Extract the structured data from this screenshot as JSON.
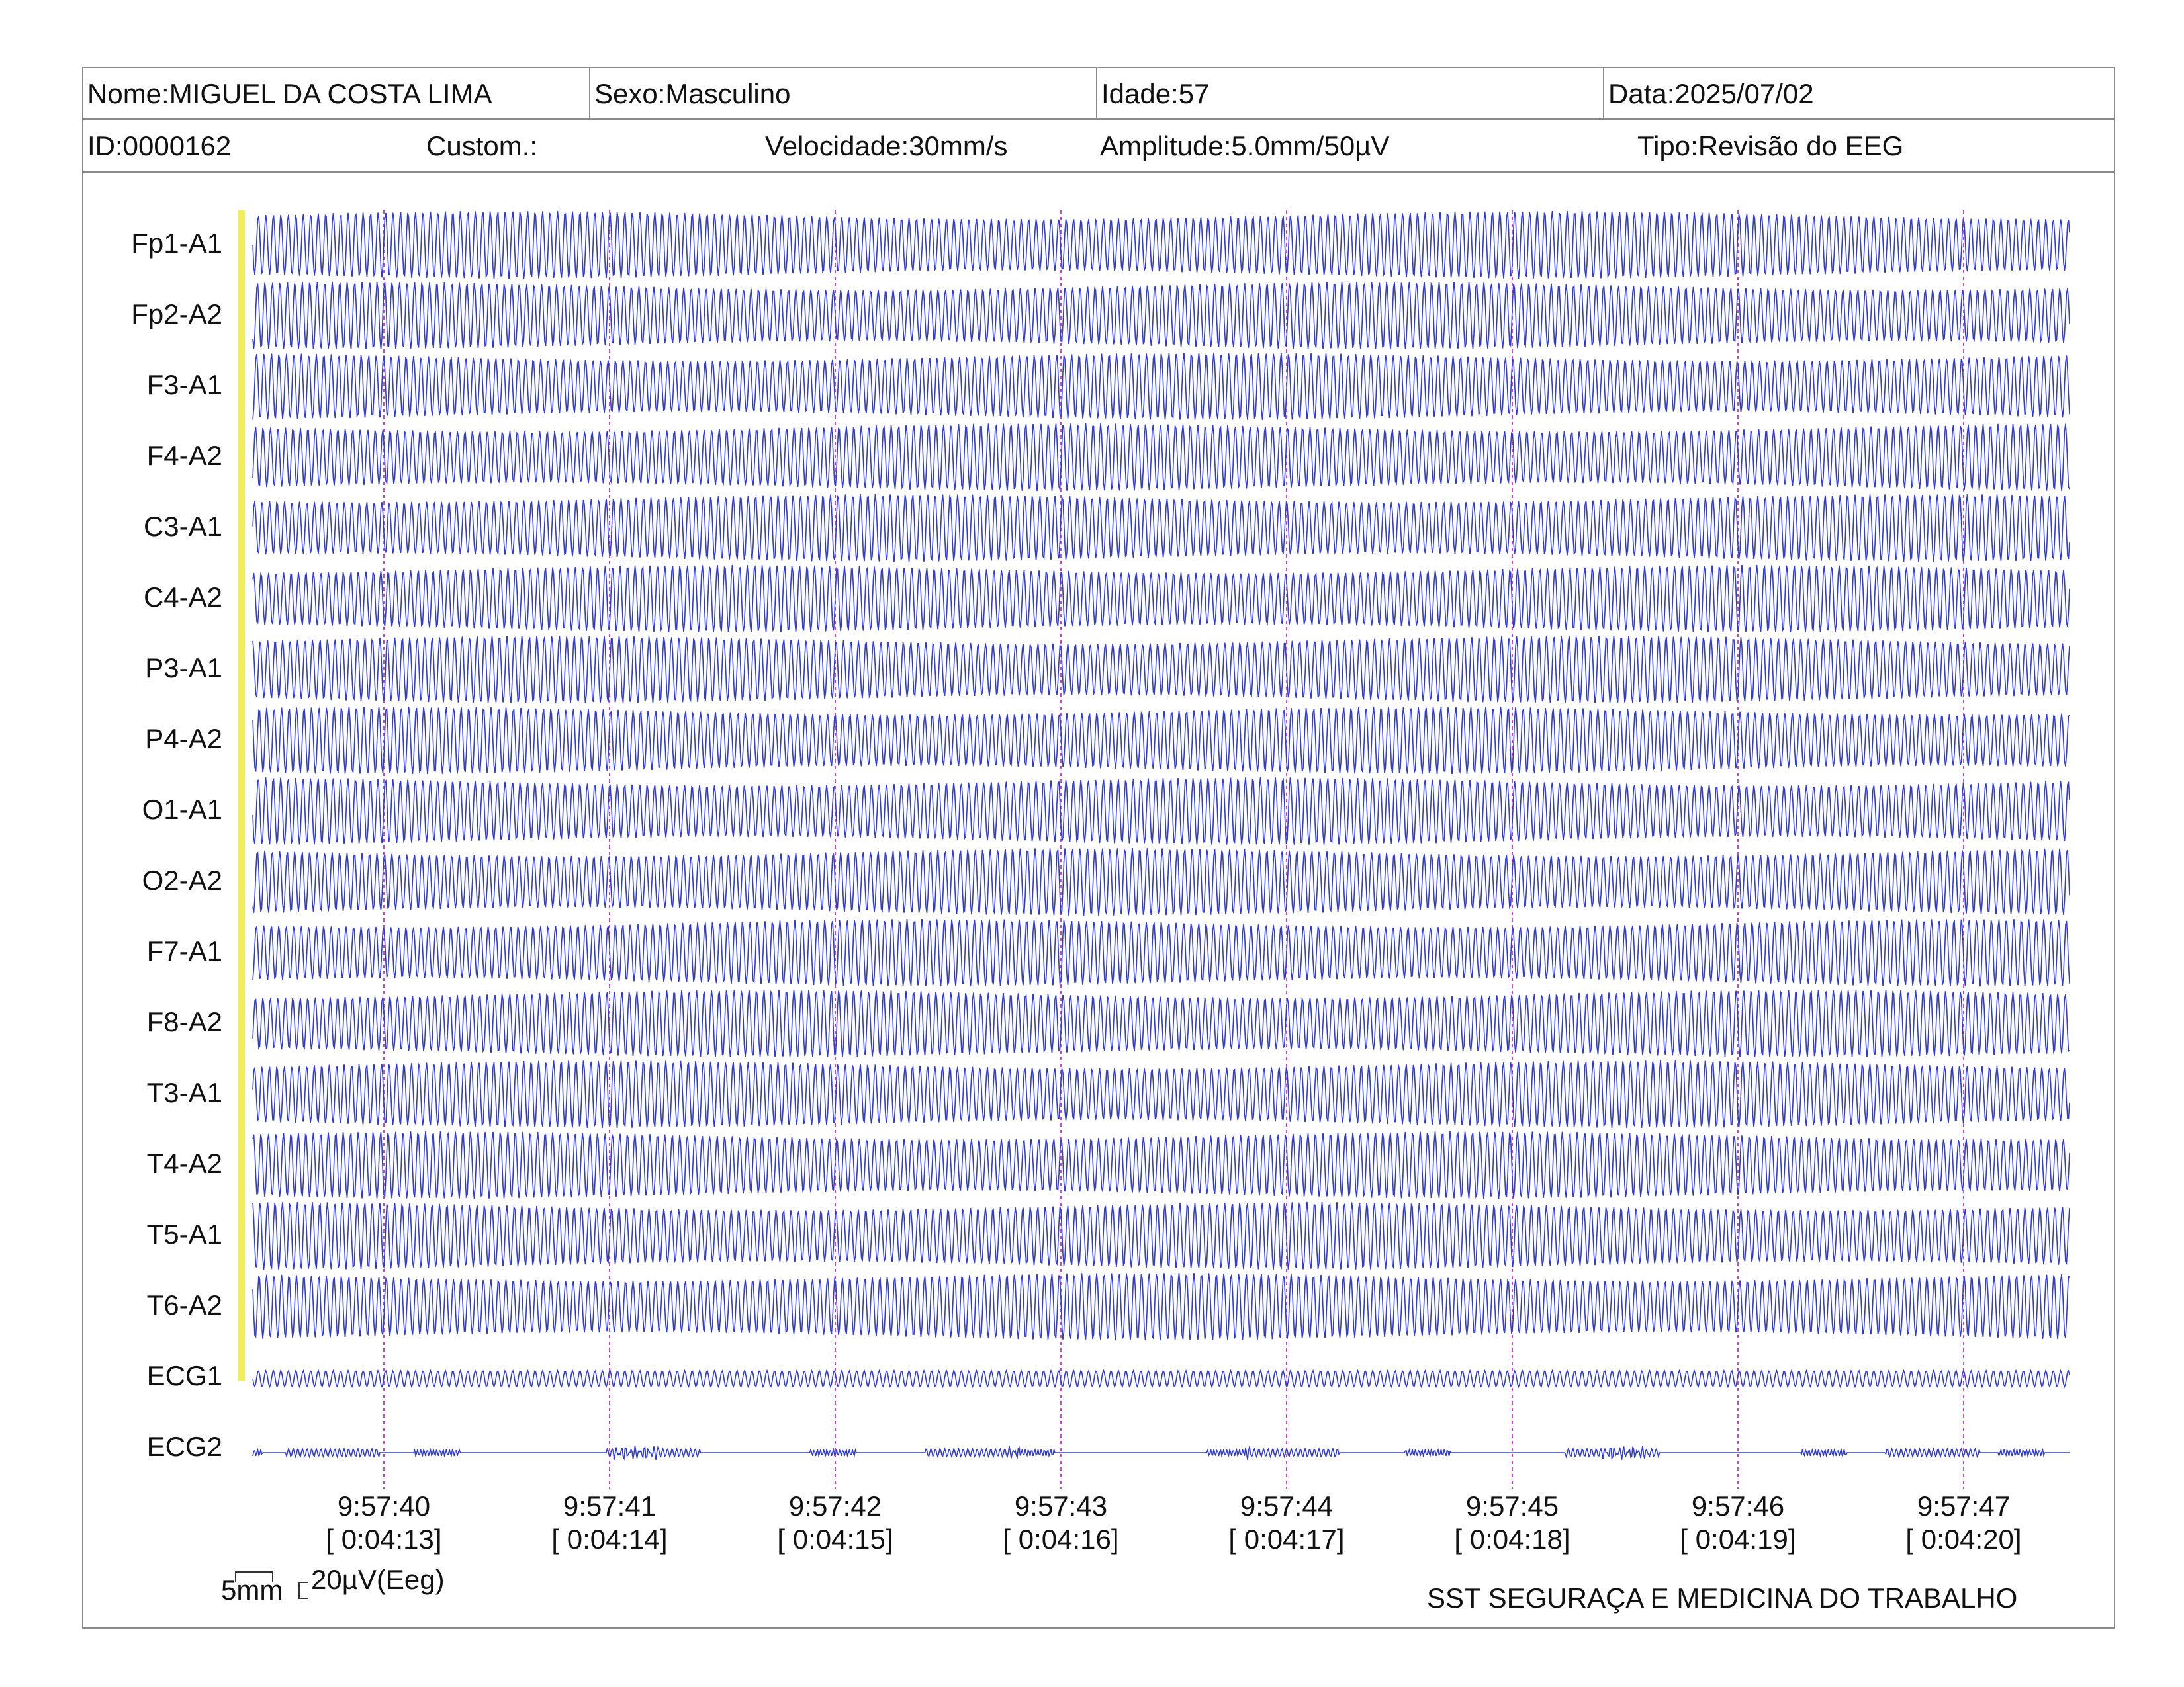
{
  "header": {
    "name": "Nome:MIGUEL DA COSTA LIMA",
    "sex": "Sexo:Masculino",
    "age": "Idade:57",
    "date": "Data:2025/07/02",
    "id": "ID:0000162",
    "custom": "Custom.:",
    "speed": "Velocidade:30mm/s",
    "amplitude": "Amplitude:5.0mm/50µV",
    "type": "Tipo:Revisão do EEG"
  },
  "scale": {
    "time_label": "5mm",
    "amplitude_label": "20µV(Eeg)"
  },
  "footer": {
    "organization": "SST SEGURAÇA E MEDICINA DO TRABALHO"
  },
  "colors": {
    "trace": "#2f3bdc",
    "time_marker": "#d040d8",
    "calibration": "#f2ee5a",
    "border": "#8a8a8a"
  },
  "chart_data": {
    "type": "line",
    "channels": [
      "Fp1-A1",
      "Fp2-A2",
      "F3-A1",
      "F4-A2",
      "C3-A1",
      "C4-A2",
      "P3-A1",
      "P4-A2",
      "O1-A1",
      "O2-A2",
      "F7-A1",
      "F8-A2",
      "T3-A1",
      "T4-A2",
      "T5-A1",
      "T6-A2",
      "ECG1",
      "ECG2"
    ],
    "time_markers": [
      {
        "clock": "9:57:40",
        "elapsed": "[ 0:04:13]"
      },
      {
        "clock": "9:57:41",
        "elapsed": "[ 0:04:14]"
      },
      {
        "clock": "9:57:42",
        "elapsed": "[ 0:04:15]"
      },
      {
        "clock": "9:57:43",
        "elapsed": "[ 0:04:16]"
      },
      {
        "clock": "9:57:44",
        "elapsed": "[ 0:04:17]"
      },
      {
        "clock": "9:57:45",
        "elapsed": "[ 0:04:18]"
      },
      {
        "clock": "9:57:46",
        "elapsed": "[ 0:04:19]"
      },
      {
        "clock": "9:57:47",
        "elapsed": "[ 0:04:20]"
      }
    ],
    "eeg_waveform": "dense sinusoidal oscillation, approx 30 cycles per second, large amplitude overlapping adjacent channels",
    "ecg1_waveform": "small continuous oscillation",
    "ecg2_waveform": "flat baseline with small sparse deflections"
  }
}
